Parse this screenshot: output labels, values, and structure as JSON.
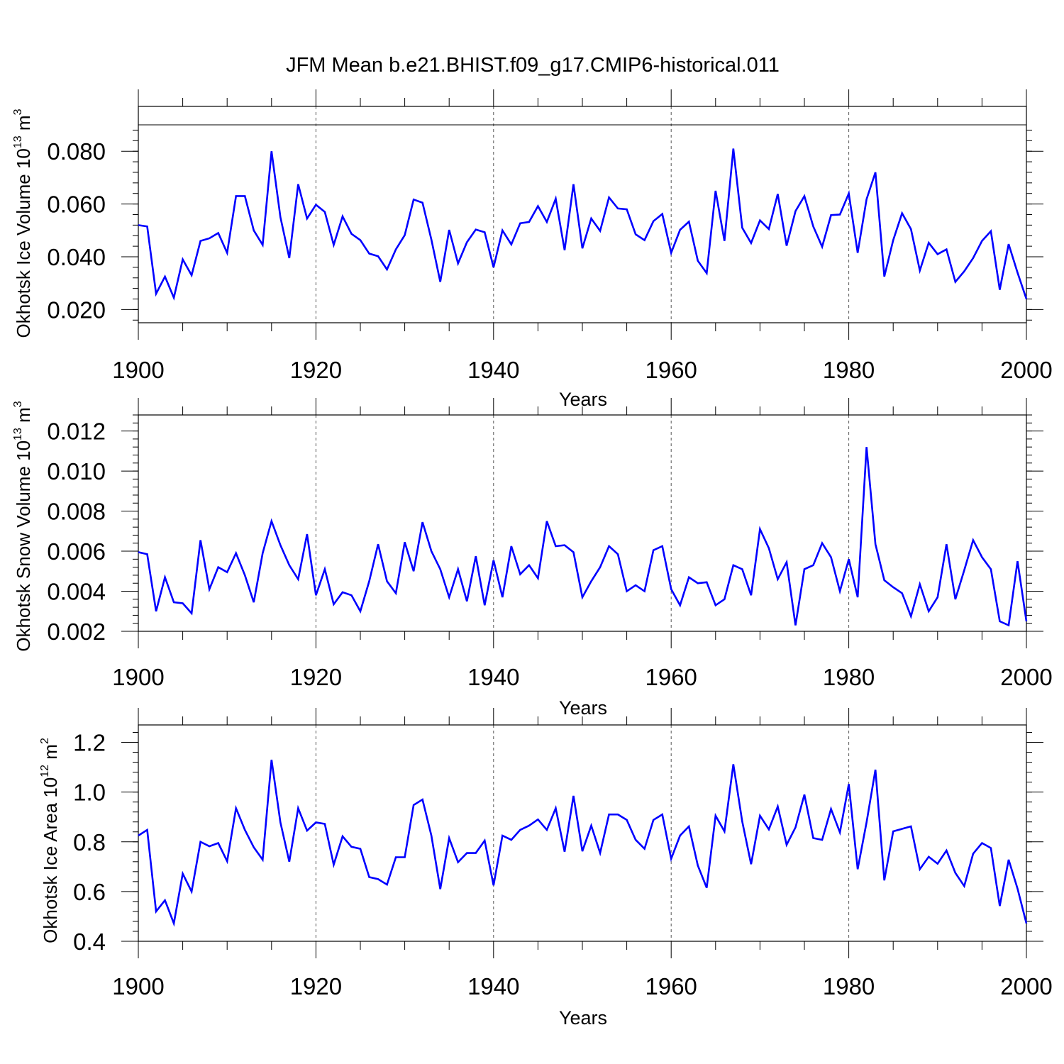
{
  "title": "JFM Mean b.e21.BHIST.f09_g17.CMIP6-historical.011",
  "colors": {
    "series": "#0000ff",
    "axes": "#000000",
    "grid": "#555555"
  },
  "chart_data": [
    {
      "type": "line",
      "title": "JFM Mean b.e21.BHIST.f09_g17.CMIP6-historical.011",
      "xlabel": "Years",
      "ylabel": {
        "prefix": "Okhotsk Ice Volume 10",
        "exp": "13",
        "unit": " m",
        "unit_exp": "3"
      },
      "xlim": [
        1900,
        2000
      ],
      "ylim": [
        0.015,
        0.09
      ],
      "x_ticks": [
        1900,
        1920,
        1940,
        1960,
        1980,
        2000
      ],
      "x_tick_labels": [
        "1900",
        "1920",
        "1940",
        "1960",
        "1980",
        "2000"
      ],
      "y_ticks": [
        0.02,
        0.04,
        0.06,
        0.08
      ],
      "y_tick_labels": [
        "0.020",
        "0.040",
        "0.060",
        "0.080"
      ],
      "y_minor_step": 0.004,
      "grid": "dashed vertical at major x ticks",
      "x_start": 1900,
      "values": [
        0.052,
        0.0515,
        0.026,
        0.0325,
        0.0245,
        0.039,
        0.033,
        0.046,
        0.047,
        0.049,
        0.0415,
        0.063,
        0.063,
        0.05,
        0.0445,
        0.08,
        0.055,
        0.0395,
        0.0675,
        0.0545,
        0.0597,
        0.057,
        0.0445,
        0.0553,
        0.0487,
        0.0463,
        0.0412,
        0.0402,
        0.0352,
        0.0428,
        0.0482,
        0.0617,
        0.0605,
        0.0465,
        0.0305,
        0.0502,
        0.0375,
        0.0455,
        0.0503,
        0.0493,
        0.036,
        0.05,
        0.0447,
        0.0527,
        0.0532,
        0.0592,
        0.0532,
        0.062,
        0.0425,
        0.0675,
        0.0432,
        0.0545,
        0.0498,
        0.0625,
        0.0583,
        0.058,
        0.0485,
        0.0463,
        0.0535,
        0.0562,
        0.0415,
        0.0502,
        0.0533,
        0.0385,
        0.0338,
        0.065,
        0.046,
        0.081,
        0.051,
        0.0452,
        0.0538,
        0.0505,
        0.0638,
        0.0442,
        0.0573,
        0.063,
        0.0515,
        0.0438,
        0.0558,
        0.056,
        0.064,
        0.0415,
        0.0618,
        0.072,
        0.0325,
        0.0463,
        0.0565,
        0.0505,
        0.0348,
        0.0453,
        0.041,
        0.0428,
        0.0305,
        0.0345,
        0.0395,
        0.046,
        0.0497,
        0.0275,
        0.0448,
        0.034,
        0.024
      ]
    },
    {
      "type": "line",
      "xlabel": "Years",
      "ylabel": {
        "prefix": "Okhotsk Snow Volume 10",
        "exp": "13",
        "unit": " m",
        "unit_exp": "3"
      },
      "xlim": [
        1900,
        2000
      ],
      "ylim": [
        0.002,
        0.0128
      ],
      "x_ticks": [
        1900,
        1920,
        1940,
        1960,
        1980,
        2000
      ],
      "x_tick_labels": [
        "1900",
        "1920",
        "1940",
        "1960",
        "1980",
        "2000"
      ],
      "y_ticks": [
        0.002,
        0.004,
        0.006,
        0.008,
        0.01,
        0.012
      ],
      "y_tick_labels": [
        "0.002",
        "0.004",
        "0.006",
        "0.008",
        "0.010",
        "0.012"
      ],
      "y_minor_step": 0.0004,
      "grid": "dashed vertical at major x ticks",
      "x_start": 1900,
      "values": [
        0.00595,
        0.00585,
        0.003,
        0.0047,
        0.00345,
        0.0034,
        0.0029,
        0.00655,
        0.0041,
        0.0052,
        0.00495,
        0.0059,
        0.0048,
        0.00345,
        0.0059,
        0.0075,
        0.0063,
        0.0053,
        0.0046,
        0.00685,
        0.0038,
        0.0051,
        0.00335,
        0.00395,
        0.0038,
        0.003,
        0.0045,
        0.00635,
        0.0045,
        0.0039,
        0.00645,
        0.005,
        0.00745,
        0.006,
        0.0051,
        0.0037,
        0.0051,
        0.0035,
        0.00575,
        0.0033,
        0.00555,
        0.0037,
        0.00625,
        0.00485,
        0.0053,
        0.00465,
        0.0075,
        0.00625,
        0.0063,
        0.00595,
        0.0037,
        0.0045,
        0.0052,
        0.00625,
        0.00585,
        0.004,
        0.0043,
        0.004,
        0.00605,
        0.00625,
        0.0041,
        0.0033,
        0.0047,
        0.0044,
        0.00445,
        0.0033,
        0.0036,
        0.0053,
        0.0051,
        0.0038,
        0.0071,
        0.00615,
        0.0046,
        0.00545,
        0.0023,
        0.0051,
        0.0053,
        0.0064,
        0.0057,
        0.004,
        0.0056,
        0.0037,
        0.0112,
        0.00635,
        0.00455,
        0.0042,
        0.0039,
        0.00275,
        0.00435,
        0.003,
        0.0037,
        0.00635,
        0.0036,
        0.00505,
        0.00655,
        0.0057,
        0.0051,
        0.0025,
        0.0023,
        0.0055,
        0.0025
      ]
    },
    {
      "type": "line",
      "xlabel": "Years",
      "ylabel": {
        "prefix": "Okhotsk Ice Area 10",
        "exp": "12",
        "unit": " m",
        "unit_exp": "2"
      },
      "xlim": [
        1900,
        2000
      ],
      "ylim": [
        0.4,
        1.27
      ],
      "x_ticks": [
        1900,
        1920,
        1940,
        1960,
        1980,
        2000
      ],
      "x_tick_labels": [
        "1900",
        "1920",
        "1940",
        "1960",
        "1980",
        "2000"
      ],
      "y_ticks": [
        0.4,
        0.6,
        0.8,
        1.0,
        1.2
      ],
      "y_tick_labels": [
        "0.4",
        "0.6",
        "0.8",
        "1.0",
        "1.2"
      ],
      "y_minor_step": 0.04,
      "grid": "dashed vertical at major x ticks",
      "x_start": 1900,
      "values": [
        0.825,
        0.848,
        0.52,
        0.565,
        0.472,
        0.672,
        0.6,
        0.8,
        0.782,
        0.795,
        0.722,
        0.935,
        0.848,
        0.778,
        0.728,
        1.13,
        0.878,
        0.72,
        0.935,
        0.845,
        0.878,
        0.872,
        0.708,
        0.822,
        0.78,
        0.772,
        0.658,
        0.65,
        0.628,
        0.738,
        0.738,
        0.948,
        0.97,
        0.825,
        0.61,
        0.815,
        0.718,
        0.755,
        0.755,
        0.805,
        0.625,
        0.825,
        0.808,
        0.848,
        0.865,
        0.89,
        0.848,
        0.935,
        0.76,
        0.985,
        0.762,
        0.865,
        0.755,
        0.91,
        0.91,
        0.888,
        0.808,
        0.772,
        0.888,
        0.91,
        0.732,
        0.825,
        0.862,
        0.705,
        0.615,
        0.905,
        0.842,
        1.112,
        0.882,
        0.71,
        0.905,
        0.85,
        0.942,
        0.788,
        0.858,
        0.99,
        0.815,
        0.808,
        0.932,
        0.838,
        1.032,
        0.69,
        0.878,
        1.09,
        0.645,
        0.842,
        0.852,
        0.862,
        0.69,
        0.74,
        0.712,
        0.765,
        0.675,
        0.622,
        0.752,
        0.795,
        0.775,
        0.542,
        0.728,
        0.612,
        0.472
      ]
    }
  ]
}
